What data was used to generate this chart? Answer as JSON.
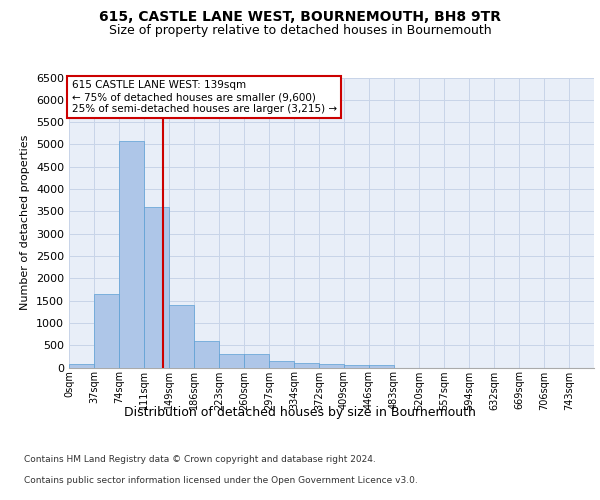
{
  "title1": "615, CASTLE LANE WEST, BOURNEMOUTH, BH8 9TR",
  "title2": "Size of property relative to detached houses in Bournemouth",
  "xlabel": "Distribution of detached houses by size in Bournemouth",
  "ylabel": "Number of detached properties",
  "footnote1": "Contains HM Land Registry data © Crown copyright and database right 2024.",
  "footnote2": "Contains public sector information licensed under the Open Government Licence v3.0.",
  "bar_labels": [
    "0sqm",
    "37sqm",
    "74sqm",
    "111sqm",
    "149sqm",
    "186sqm",
    "223sqm",
    "260sqm",
    "297sqm",
    "334sqm",
    "372sqm",
    "409sqm",
    "446sqm",
    "483sqm",
    "520sqm",
    "557sqm",
    "594sqm",
    "632sqm",
    "669sqm",
    "706sqm",
    "743sqm"
  ],
  "bar_values": [
    75,
    1650,
    5075,
    3600,
    1400,
    600,
    300,
    295,
    150,
    100,
    75,
    50,
    45,
    0,
    0,
    0,
    0,
    0,
    0,
    0,
    0
  ],
  "bar_color": "#aec6e8",
  "bar_edge_color": "#5a9fd4",
  "grid_color": "#c8d4e8",
  "bg_color": "#e8eef8",
  "property_line_color": "#cc0000",
  "annotation_box_color": "#ffffff",
  "annotation_box_edge": "#cc0000",
  "annotation_line1": "615 CASTLE LANE WEST: 139sqm",
  "annotation_line2": "← 75% of detached houses are smaller (9,600)",
  "annotation_line3": "25% of semi-detached houses are larger (3,215) →",
  "ylim": [
    0,
    6500
  ],
  "yticks": [
    0,
    500,
    1000,
    1500,
    2000,
    2500,
    3000,
    3500,
    4000,
    4500,
    5000,
    5500,
    6000,
    6500
  ],
  "property_value_sqm": 139,
  "bin_width": 37
}
